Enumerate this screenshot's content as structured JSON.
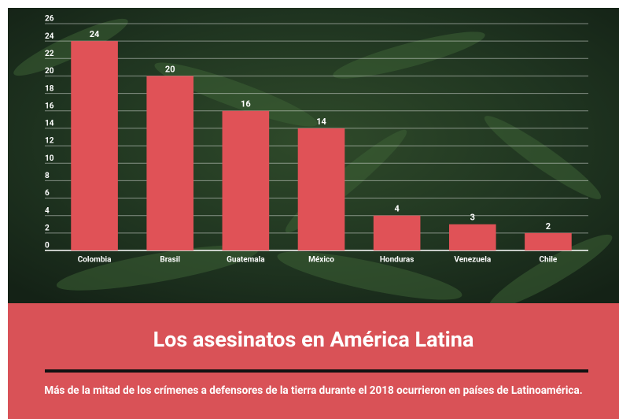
{
  "chart_data": {
    "type": "bar",
    "title": "Los asesinatos en América Latina",
    "subtitle": "Más de la mitad de los crímenes a defensores de la tierra durante el 2018 ocurrieron en países de Latinoamérica.",
    "categories": [
      "Colombia",
      "Brasil",
      "Guatemala",
      "México",
      "Honduras",
      "Venezuela",
      "Chile"
    ],
    "values": [
      24,
      20,
      16,
      14,
      4,
      3,
      2
    ],
    "color": "#e05257",
    "ylim": [
      0,
      26
    ],
    "yticks": [
      0,
      2,
      4,
      6,
      8,
      10,
      12,
      14,
      16,
      18,
      20,
      22,
      24,
      26
    ],
    "grid": true
  }
}
